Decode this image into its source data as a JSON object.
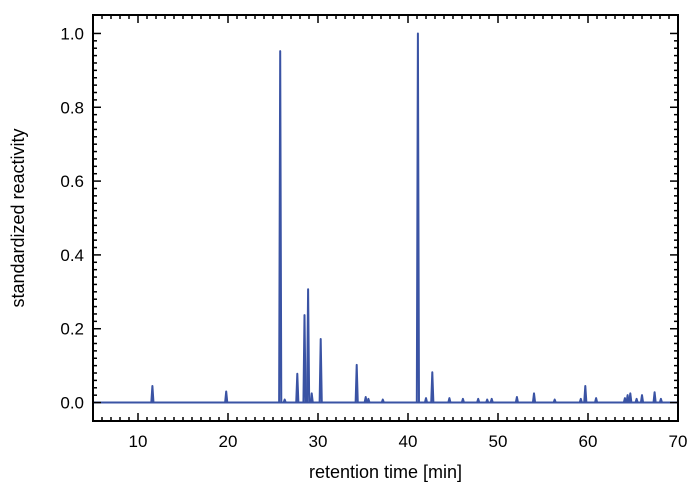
{
  "chart_data": {
    "type": "line",
    "title": "",
    "xlabel": "retention time [min]",
    "ylabel": "standardized reactivity",
    "xlim": [
      5,
      70
    ],
    "ylim": [
      -0.05,
      1.05
    ],
    "x_ticks": [
      10,
      20,
      30,
      40,
      50,
      60,
      70
    ],
    "x_tick_labels": [
      "10",
      "20",
      "30",
      "40",
      "50",
      "60",
      "70"
    ],
    "y_ticks": [
      0.0,
      0.2,
      0.4,
      0.6,
      0.8,
      1.0
    ],
    "y_tick_labels": [
      "0.0",
      "0.2",
      "0.4",
      "0.6",
      "0.8",
      "1.0"
    ],
    "grid": false,
    "series_color": "#3a53a4",
    "peaks": [
      {
        "x": 11.6,
        "y": 0.045
      },
      {
        "x": 19.8,
        "y": 0.03
      },
      {
        "x": 25.8,
        "y": 0.952
      },
      {
        "x": 26.3,
        "y": 0.008
      },
      {
        "x": 27.7,
        "y": 0.078
      },
      {
        "x": 28.5,
        "y": 0.237
      },
      {
        "x": 28.9,
        "y": 0.307
      },
      {
        "x": 29.3,
        "y": 0.025
      },
      {
        "x": 30.3,
        "y": 0.172
      },
      {
        "x": 34.3,
        "y": 0.102
      },
      {
        "x": 35.3,
        "y": 0.015
      },
      {
        "x": 35.6,
        "y": 0.01
      },
      {
        "x": 37.2,
        "y": 0.008
      },
      {
        "x": 41.1,
        "y": 1.0
      },
      {
        "x": 42.0,
        "y": 0.012
      },
      {
        "x": 42.7,
        "y": 0.082
      },
      {
        "x": 44.6,
        "y": 0.012
      },
      {
        "x": 46.1,
        "y": 0.01
      },
      {
        "x": 47.8,
        "y": 0.01
      },
      {
        "x": 48.8,
        "y": 0.008
      },
      {
        "x": 49.3,
        "y": 0.01
      },
      {
        "x": 52.1,
        "y": 0.015
      },
      {
        "x": 54.0,
        "y": 0.025
      },
      {
        "x": 56.3,
        "y": 0.008
      },
      {
        "x": 59.2,
        "y": 0.01
      },
      {
        "x": 59.7,
        "y": 0.045
      },
      {
        "x": 60.9,
        "y": 0.012
      },
      {
        "x": 64.1,
        "y": 0.012
      },
      {
        "x": 64.4,
        "y": 0.02
      },
      {
        "x": 64.7,
        "y": 0.025
      },
      {
        "x": 65.4,
        "y": 0.01
      },
      {
        "x": 66.0,
        "y": 0.02
      },
      {
        "x": 67.4,
        "y": 0.028
      },
      {
        "x": 68.1,
        "y": 0.01
      }
    ]
  }
}
